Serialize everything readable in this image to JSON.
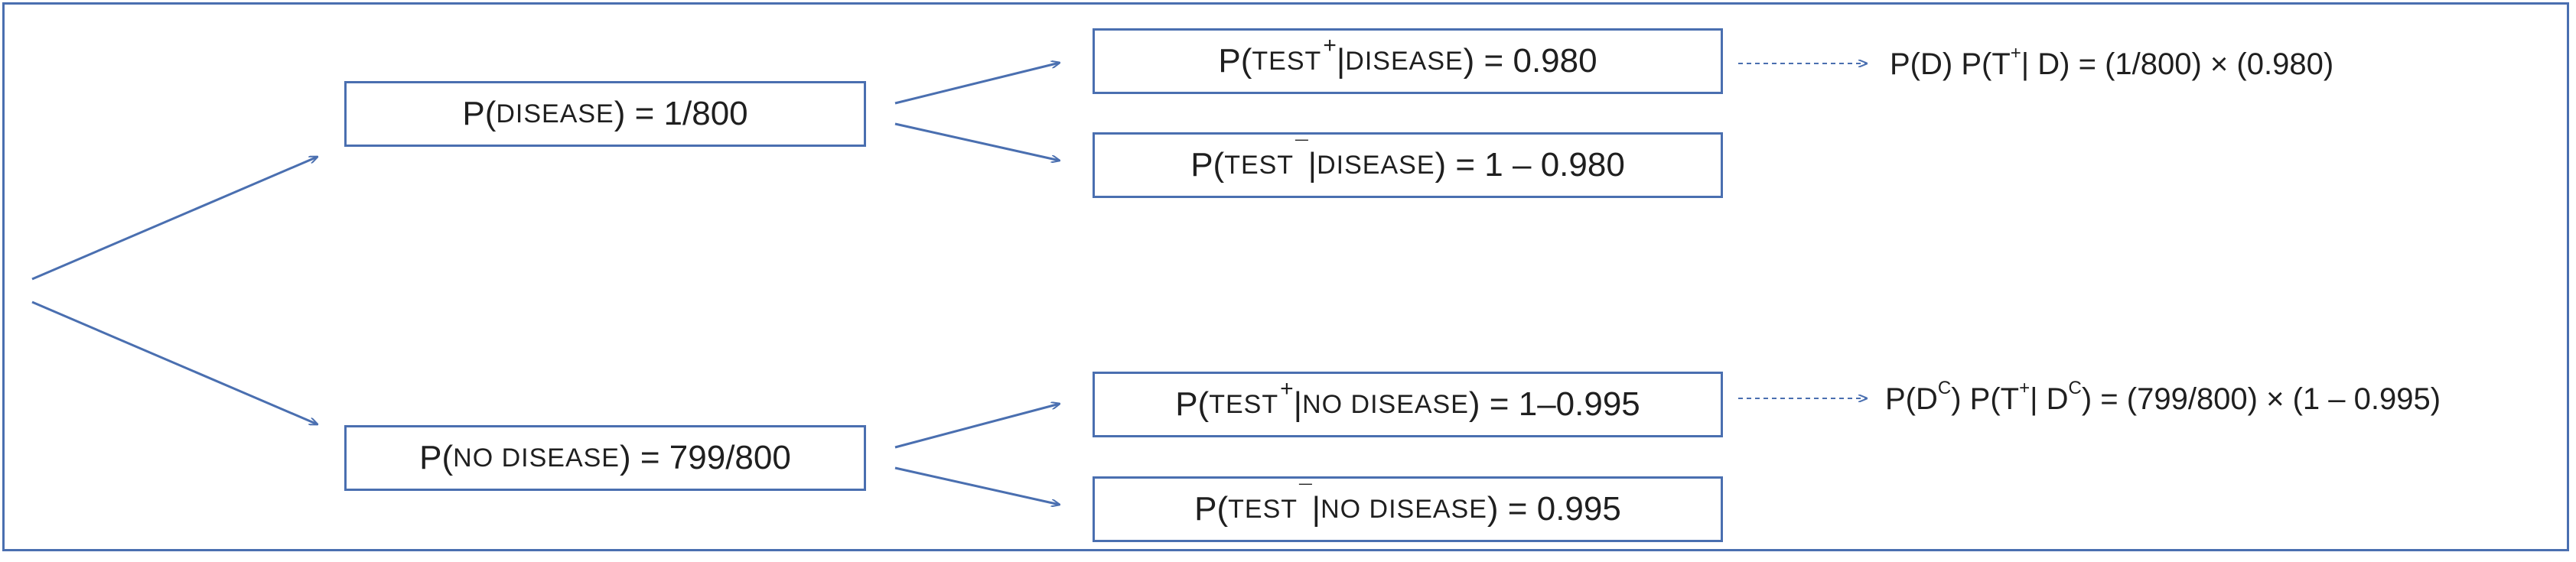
{
  "tree": {
    "root": {
      "disease": {
        "prefix": "P(",
        "word": "DISEASE",
        "suffix": ") = 1/800"
      },
      "no_disease": {
        "prefix": "P(",
        "word": "NO DISEASE",
        "suffix": ") = 799/800"
      }
    },
    "branches": {
      "test_pos_given_disease": {
        "prefix": "P(",
        "test": "TEST",
        "sign": "+",
        "bar": "| ",
        "cond": "DISEASE",
        "suffix": ") = 0.980"
      },
      "test_neg_given_disease": {
        "prefix": "P(",
        "test": "TEST",
        "sign": "¯",
        "bar": "| ",
        "cond": "DISEASE",
        "suffix": ") = 1 – 0.980"
      },
      "test_pos_given_no_disease": {
        "prefix": "P(",
        "test": "TEST",
        "sign": "+",
        "bar": "| ",
        "cond": "NO DISEASE",
        "suffix": ") = 1–0.995"
      },
      "test_neg_given_no_disease": {
        "prefix": "P(",
        "test": "TEST",
        "sign": "¯",
        "bar": "| ",
        "cond": "NO DISEASE",
        "suffix": ") = 0.995"
      }
    },
    "results": {
      "disease_positive": {
        "a": "P(D) P(T",
        "sup": "+",
        "b": "| D) = (1/800) × (0.980)"
      },
      "no_disease_positive": {
        "a": "P(D",
        "sup1": "C",
        "b": ") P(T",
        "sup2": "+",
        "c": "| D",
        "sup3": "C",
        "d": ") = (799/800) × (1 – 0.995)"
      }
    }
  },
  "colors": {
    "accent": "#4a6fb0"
  }
}
